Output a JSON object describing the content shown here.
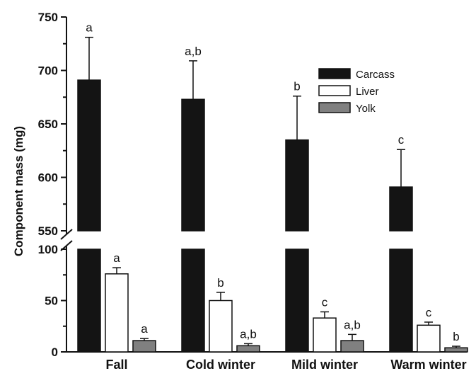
{
  "chart_data": {
    "type": "bar",
    "ylabel": "Component mass (mg)",
    "categories": [
      "Fall",
      "Cold winter",
      "Mild winter",
      "Warm winter"
    ],
    "y_axis_break": {
      "lower_range": [
        0,
        100
      ],
      "upper_range": [
        550,
        750
      ]
    },
    "y_ticks_lower": [
      "0",
      "50",
      "100"
    ],
    "y_ticks_upper": [
      "550",
      "600",
      "650",
      "700",
      "750"
    ],
    "series": [
      {
        "name": "Carcass",
        "color": "#141414",
        "values": [
          691,
          673,
          635,
          591
        ],
        "errors": [
          40,
          36,
          41,
          35
        ],
        "significance": [
          "a",
          "a,b",
          "b",
          "c"
        ]
      },
      {
        "name": "Liver",
        "color": "#ffffff",
        "values": [
          76,
          50,
          33,
          26
        ],
        "errors": [
          6,
          8,
          6,
          3
        ],
        "significance": [
          "a",
          "b",
          "c",
          "c"
        ]
      },
      {
        "name": "Yolk",
        "color": "#808080",
        "values": [
          11,
          6,
          11,
          4
        ],
        "errors": [
          2,
          2,
          6,
          1.5
        ],
        "significance": [
          "a",
          "a,b",
          "a,b",
          "b"
        ]
      }
    ],
    "legend_position": "top-right"
  }
}
